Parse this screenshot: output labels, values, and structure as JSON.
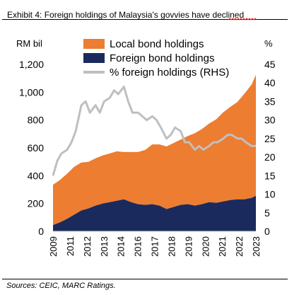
{
  "exhibit_title": "Exhibit 4: Foreign holdings of Malaysia's govvies have declined",
  "source_note": "Sources: CEIC, MARC Ratings.",
  "colors": {
    "local": "#ED7D31",
    "foreign": "#1B2A5C",
    "pct_line": "#BFBFBF",
    "spellcheck": "#E0342B"
  },
  "chart_data": {
    "type": "area",
    "left_unit_label": "RM bil",
    "right_unit_label": "%",
    "left_axis": {
      "range": [
        0,
        1200
      ],
      "ticks": [
        "0",
        "200",
        "400",
        "600",
        "800",
        "1,000",
        "1,200"
      ]
    },
    "right_axis": {
      "range": [
        0,
        45
      ],
      "ticks": [
        "0",
        "5",
        "10",
        "15",
        "20",
        "25",
        "30",
        "35",
        "40",
        "45"
      ]
    },
    "x_axis": {
      "range": [
        2009,
        2023
      ],
      "ticks": [
        "2009",
        "2011",
        "2012",
        "2013",
        "2014",
        "2016",
        "2017",
        "2018",
        "2019",
        "2020",
        "2021",
        "2022",
        "2023"
      ]
    },
    "legend_position": "top-right",
    "series": [
      {
        "name": "Local bond holdings",
        "kind": "stacked-area",
        "x": [
          2009,
          2009.5,
          2010,
          2010.5,
          2011,
          2011.5,
          2012,
          2012.5,
          2013,
          2013.5,
          2014,
          2014.5,
          2015,
          2015.5,
          2016,
          2016.5,
          2017,
          2017.5,
          2018,
          2018.5,
          2019,
          2019.5,
          2020,
          2020.5,
          2021,
          2021.5,
          2022,
          2022.5,
          2023,
          2023.3
        ],
        "values": [
          290,
          305,
          325,
          345,
          345,
          335,
          340,
          345,
          350,
          355,
          340,
          360,
          375,
          395,
          430,
          440,
          450,
          460,
          470,
          490,
          520,
          540,
          565,
          600,
          640,
          670,
          700,
          760,
          815,
          870
        ]
      },
      {
        "name": "Foreign bond holdings",
        "kind": "stacked-area",
        "x": [
          2009,
          2009.5,
          2010,
          2010.5,
          2011,
          2011.5,
          2012,
          2012.5,
          2013,
          2013.5,
          2014,
          2014.5,
          2015,
          2015.5,
          2016,
          2016.5,
          2017,
          2017.5,
          2018,
          2018.5,
          2019,
          2019.5,
          2020,
          2020.5,
          2021,
          2021.5,
          2022,
          2022.5,
          2023,
          2023.3
        ],
        "values": [
          45,
          65,
          90,
          120,
          150,
          165,
          185,
          200,
          210,
          220,
          230,
          210,
          195,
          190,
          195,
          185,
          160,
          175,
          190,
          195,
          185,
          195,
          210,
          205,
          215,
          225,
          230,
          230,
          240,
          255
        ]
      },
      {
        "name": "% foreign holdings (RHS)",
        "kind": "line",
        "axis": "right",
        "x": [
          2009,
          2009.3,
          2009.6,
          2010,
          2010.3,
          2010.6,
          2011,
          2011.3,
          2011.6,
          2012,
          2012.3,
          2012.6,
          2013,
          2013.3,
          2013.6,
          2014,
          2014.3,
          2014.6,
          2015,
          2015.3,
          2015.6,
          2016,
          2016.3,
          2016.6,
          2017,
          2017.3,
          2017.6,
          2018,
          2018.3,
          2018.6,
          2019,
          2019.3,
          2019.6,
          2020,
          2020.3,
          2020.6,
          2021,
          2021.3,
          2021.6,
          2022,
          2022.3,
          2022.6,
          2023,
          2023.3
        ],
        "values": [
          15,
          19,
          21,
          22,
          24,
          27,
          34,
          35,
          32,
          34,
          32,
          35,
          36,
          38,
          37,
          39,
          35,
          32,
          32,
          31,
          30,
          31,
          30,
          28,
          25,
          26,
          28,
          27,
          24,
          24,
          22,
          23,
          22,
          23,
          24,
          24,
          25,
          26,
          26,
          25,
          25,
          24,
          23,
          23
        ]
      }
    ]
  }
}
